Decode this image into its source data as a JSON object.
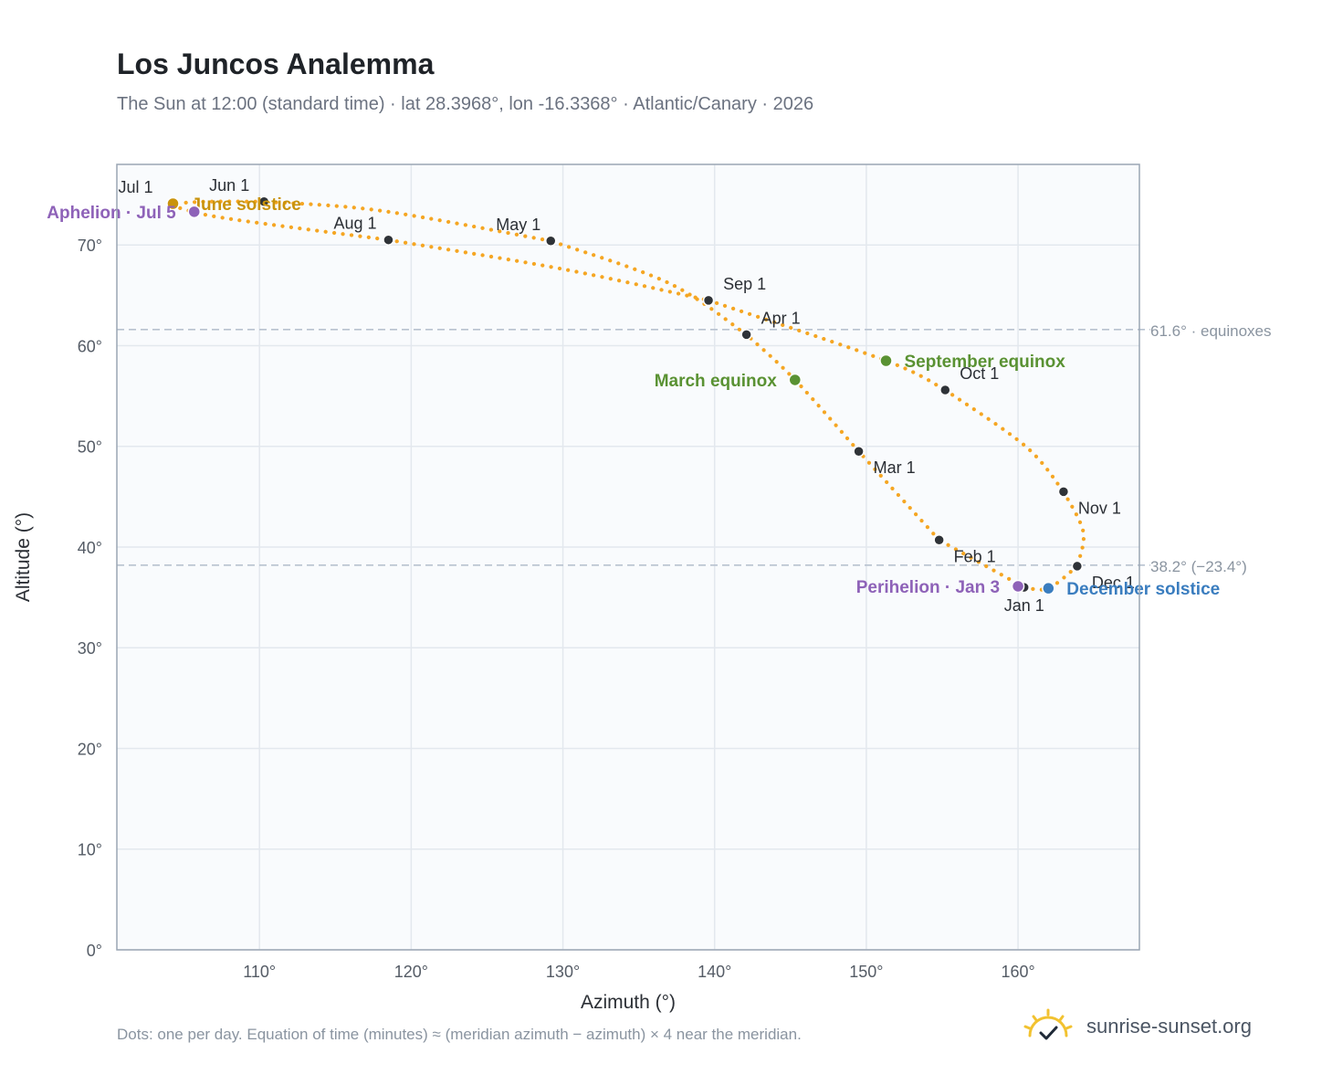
{
  "header": {
    "title": "Los Juncos Analemma",
    "subtitle": "The Sun at 12:00 (standard time) · lat 28.3968°, lon -16.3368° · Atlantic/Canary · 2026"
  },
  "footer": {
    "note": "Dots: one per day. Equation of time (minutes) ≈ (meridian azimuth − azimuth) × 4 near the meridian.",
    "brand": "sunrise-sunset.org"
  },
  "colors": {
    "curve": "#f5a623",
    "month_dot": "#2f3338",
    "equinox": "#5a9233",
    "solstice_june": "#c9930c",
    "solstice_december": "#3a7dbf",
    "apsis": "#8e62b8",
    "refline": "#b8c2d0",
    "plot_bg": "#f9fbfd",
    "grid": "#e3e8ee"
  },
  "chart_data": {
    "type": "scatter",
    "xlabel": "Azimuth (°)",
    "ylabel": "Altitude (°)",
    "xlim": [
      100.6,
      168
    ],
    "ylim": [
      0,
      78
    ],
    "x_ticks": [
      110,
      120,
      130,
      140,
      150,
      160
    ],
    "x_tick_labels": [
      "110°",
      "120°",
      "130°",
      "140°",
      "150°",
      "160°"
    ],
    "y_ticks": [
      0,
      10,
      20,
      30,
      40,
      50,
      60,
      70
    ],
    "y_tick_labels": [
      "0°",
      "10°",
      "20°",
      "30°",
      "40°",
      "50°",
      "60°",
      "70°"
    ],
    "grid": true,
    "track": [
      {
        "month": "Jan",
        "dates": [
          "Jan 1",
          "Feb 1"
        ],
        "points": [
          [
            160.4,
            36.0
          ],
          [
            154.8,
            40.7
          ]
        ]
      },
      {
        "month": "Feb",
        "dates": [
          "Feb 1",
          "Mar 1"
        ],
        "points": [
          [
            154.8,
            40.7
          ],
          [
            149.5,
            49.5
          ]
        ]
      },
      {
        "month": "Mar",
        "dates": [
          "Mar 1",
          "Apr 1"
        ],
        "points": [
          [
            149.5,
            49.5
          ],
          [
            145.3,
            56.6
          ],
          [
            142.1,
            61.1
          ]
        ]
      },
      {
        "month": "Apr",
        "dates": [
          "Apr 1",
          "May 1"
        ],
        "points": [
          [
            142.1,
            61.1
          ],
          [
            137.0,
            66.2
          ],
          [
            129.2,
            70.4
          ]
        ]
      },
      {
        "month": "May",
        "dates": [
          "May 1",
          "Jun 1"
        ],
        "points": [
          [
            129.2,
            70.4
          ],
          [
            118.0,
            73.4
          ],
          [
            110.3,
            74.3
          ]
        ]
      },
      {
        "month": "Jun",
        "dates": [
          "Jun 1",
          "Jul 1"
        ],
        "points": [
          [
            110.3,
            74.3
          ],
          [
            106.5,
            74.3
          ],
          [
            104.3,
            74.1
          ]
        ]
      },
      {
        "month": "Jul",
        "dates": [
          "Jul 1",
          "Aug 1"
        ],
        "points": [
          [
            104.3,
            74.1
          ],
          [
            104.9,
            73.6
          ],
          [
            108.0,
            72.6
          ],
          [
            118.5,
            70.5
          ]
        ]
      },
      {
        "month": "Aug",
        "dates": [
          "Aug 1",
          "Sep 1"
        ],
        "points": [
          [
            118.5,
            70.5
          ],
          [
            130.0,
            67.6
          ],
          [
            139.6,
            64.5
          ]
        ]
      },
      {
        "month": "Sep",
        "dates": [
          "Sep 1",
          "Oct 1"
        ],
        "points": [
          [
            139.6,
            64.5
          ],
          [
            151.3,
            58.5
          ],
          [
            155.2,
            55.6
          ]
        ]
      },
      {
        "month": "Oct",
        "dates": [
          "Oct 1",
          "Nov 1"
        ],
        "points": [
          [
            155.2,
            55.6
          ],
          [
            160.5,
            50.0
          ],
          [
            163.0,
            45.5
          ]
        ]
      },
      {
        "month": "Nov",
        "dates": [
          "Nov 1",
          "Dec 1"
        ],
        "points": [
          [
            163.0,
            45.5
          ],
          [
            164.3,
            41.5
          ],
          [
            163.9,
            38.1
          ]
        ]
      },
      {
        "month": "Dec",
        "dates": [
          "Dec 1",
          "Jan 1"
        ],
        "points": [
          [
            163.9,
            38.1
          ],
          [
            162.0,
            35.9
          ],
          [
            160.4,
            36.0
          ]
        ]
      }
    ],
    "month_markers": [
      {
        "label": "Jan 1",
        "x": 160.4,
        "y": 36.0,
        "label_pos": "below"
      },
      {
        "label": "Feb 1",
        "x": 154.8,
        "y": 40.7,
        "label_pos": "below-right"
      },
      {
        "label": "Mar 1",
        "x": 149.5,
        "y": 49.5,
        "label_pos": "below-right"
      },
      {
        "label": "Apr 1",
        "x": 142.1,
        "y": 61.1,
        "label_pos": "above-right"
      },
      {
        "label": "May 1",
        "x": 129.2,
        "y": 70.4,
        "label_pos": "above-left"
      },
      {
        "label": "Jun 1",
        "x": 110.3,
        "y": 74.3,
        "label_pos": "above-left"
      },
      {
        "label": "Jul 1",
        "x": 104.3,
        "y": 74.1,
        "label_pos": "above-left"
      },
      {
        "label": "Aug 1",
        "x": 118.5,
        "y": 70.5,
        "label_pos": "above-left"
      },
      {
        "label": "Sep 1",
        "x": 139.6,
        "y": 64.5,
        "label_pos": "above-right"
      },
      {
        "label": "Oct 1",
        "x": 155.2,
        "y": 55.6,
        "label_pos": "above-right"
      },
      {
        "label": "Nov 1",
        "x": 163.0,
        "y": 45.5,
        "label_pos": "below-right"
      },
      {
        "label": "Dec 1",
        "x": 163.9,
        "y": 38.1,
        "label_pos": "below-right"
      }
    ],
    "events": [
      {
        "label": "March equinox",
        "x": 145.3,
        "y": 56.6,
        "kind": "equinox",
        "label_pos": "left"
      },
      {
        "label": "September equinox",
        "x": 151.3,
        "y": 58.5,
        "kind": "equinox",
        "label_pos": "right"
      },
      {
        "label": "June solstice",
        "x": 104.3,
        "y": 74.1,
        "kind": "solstice_june",
        "label_pos": "right"
      },
      {
        "label": "December solstice",
        "x": 162.0,
        "y": 35.9,
        "kind": "solstice_december",
        "label_pos": "right"
      },
      {
        "label": "Aphelion · Jul 5",
        "x": 105.7,
        "y": 73.3,
        "kind": "apsis",
        "label_pos": "left"
      },
      {
        "label": "Perihelion · Jan 3",
        "x": 160.0,
        "y": 36.1,
        "kind": "apsis",
        "label_pos": "left"
      }
    ],
    "reference_lines": [
      {
        "y": 61.6,
        "label": "61.6° · equinoxes"
      },
      {
        "y": 38.2,
        "label": "38.2° (−23.4°)"
      }
    ]
  }
}
